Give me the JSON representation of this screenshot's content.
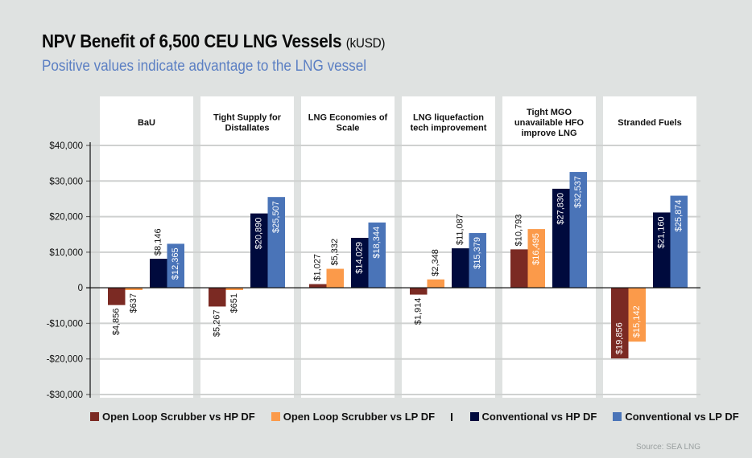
{
  "header": {
    "title": "NPV Benefit of 6,500 CEU LNG Vessels",
    "title_unit": "(kUSD)",
    "subtitle": "Positive values indicate advantage to the LNG vessel"
  },
  "source": "Source: SEA LNG",
  "chart_data": {
    "type": "bar",
    "title": "NPV Benefit of 6,500 CEU LNG Vessels (kUSD)",
    "subtitle": "Positive values indicate advantage to the LNG vessel",
    "xlabel": "",
    "ylabel": "",
    "ylim": [
      -30000,
      40000
    ],
    "yticks": [
      40000,
      30000,
      20000,
      10000,
      0,
      -10000,
      -20000,
      -30000
    ],
    "ytick_labels": [
      "$40,000",
      "$30,000",
      "$20,000",
      "$10,000",
      "0",
      "-$10,000",
      "-$20,000",
      "-$30,000"
    ],
    "grid": true,
    "legend_position": "bottom",
    "categories": [
      [
        "BaU"
      ],
      [
        "Tight Supply for",
        "Distallates"
      ],
      [
        "LNG Economies of",
        "Scale"
      ],
      [
        "LNG liquefaction",
        "tech improvement"
      ],
      [
        "Tight MGO",
        "unavailable HFO",
        "improve LNG"
      ],
      [
        "Stranded Fuels"
      ]
    ],
    "series": [
      {
        "name": "Open Loop Scrubber vs HP DF",
        "color": "#7b2a23",
        "values": [
          -4856,
          -5267,
          1027,
          -1914,
          10793,
          -19856
        ],
        "labels": [
          "$4,856",
          "$5,267",
          "$1,027",
          "$1,914",
          "$10,793",
          "$19,856"
        ]
      },
      {
        "name": "Open Loop Scrubber vs LP DF",
        "color": "#fb9a4a",
        "values": [
          -637,
          -651,
          5332,
          2348,
          16495,
          -15142
        ],
        "labels": [
          "$637",
          "$651",
          "$5,332",
          "$2,348",
          "$16,495",
          "$15,142"
        ]
      },
      {
        "name": "Conventional vs HP DF",
        "color": "#000a3d",
        "values": [
          8146,
          20890,
          14029,
          11087,
          27830,
          21160
        ],
        "labels": [
          "$8,146",
          "$20,890",
          "$14,029",
          "$11,087",
          "$27,830",
          "$21,160"
        ]
      },
      {
        "name": "Conventional vs LP DF",
        "color": "#4a74b8",
        "values": [
          12365,
          25507,
          18344,
          15379,
          32537,
          25874
        ],
        "labels": [
          "$12,365",
          "$25,507",
          "$18,344",
          "$15,379",
          "$32,537",
          "$25,874"
        ]
      }
    ]
  }
}
